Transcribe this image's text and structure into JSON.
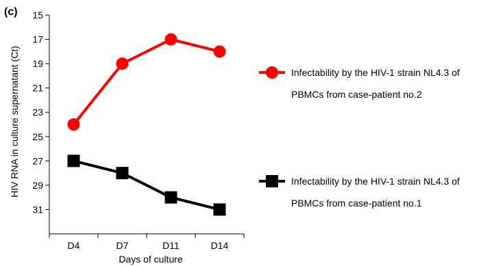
{
  "panel_label": "(c)",
  "chart_data": {
    "type": "line",
    "title": "",
    "xlabel": "Days of culture",
    "ylabel": "HIV RNA in culture supernatant (Ct)",
    "categories": [
      "D4",
      "D7",
      "D11",
      "D14"
    ],
    "ylim": [
      15,
      33
    ],
    "y_inverted": true,
    "yticks": [
      15,
      17,
      19,
      21,
      23,
      25,
      27,
      29,
      31
    ],
    "grid": false,
    "legend_position": "right",
    "series": [
      {
        "name_line1": "Infectability by the HIV-1 strain NL4.3 of",
        "name_line2": "PBMCs from case-patient no.2",
        "marker": "circle",
        "color": "#ff0000",
        "values": [
          24,
          19,
          17,
          18
        ]
      },
      {
        "name_line1": "Infectability by the HIV-1 strain NL4.3 of",
        "name_line2": "PBMCs from case-patient no.1",
        "marker": "square",
        "color": "#000000",
        "values": [
          27,
          28,
          30,
          31
        ]
      }
    ]
  }
}
